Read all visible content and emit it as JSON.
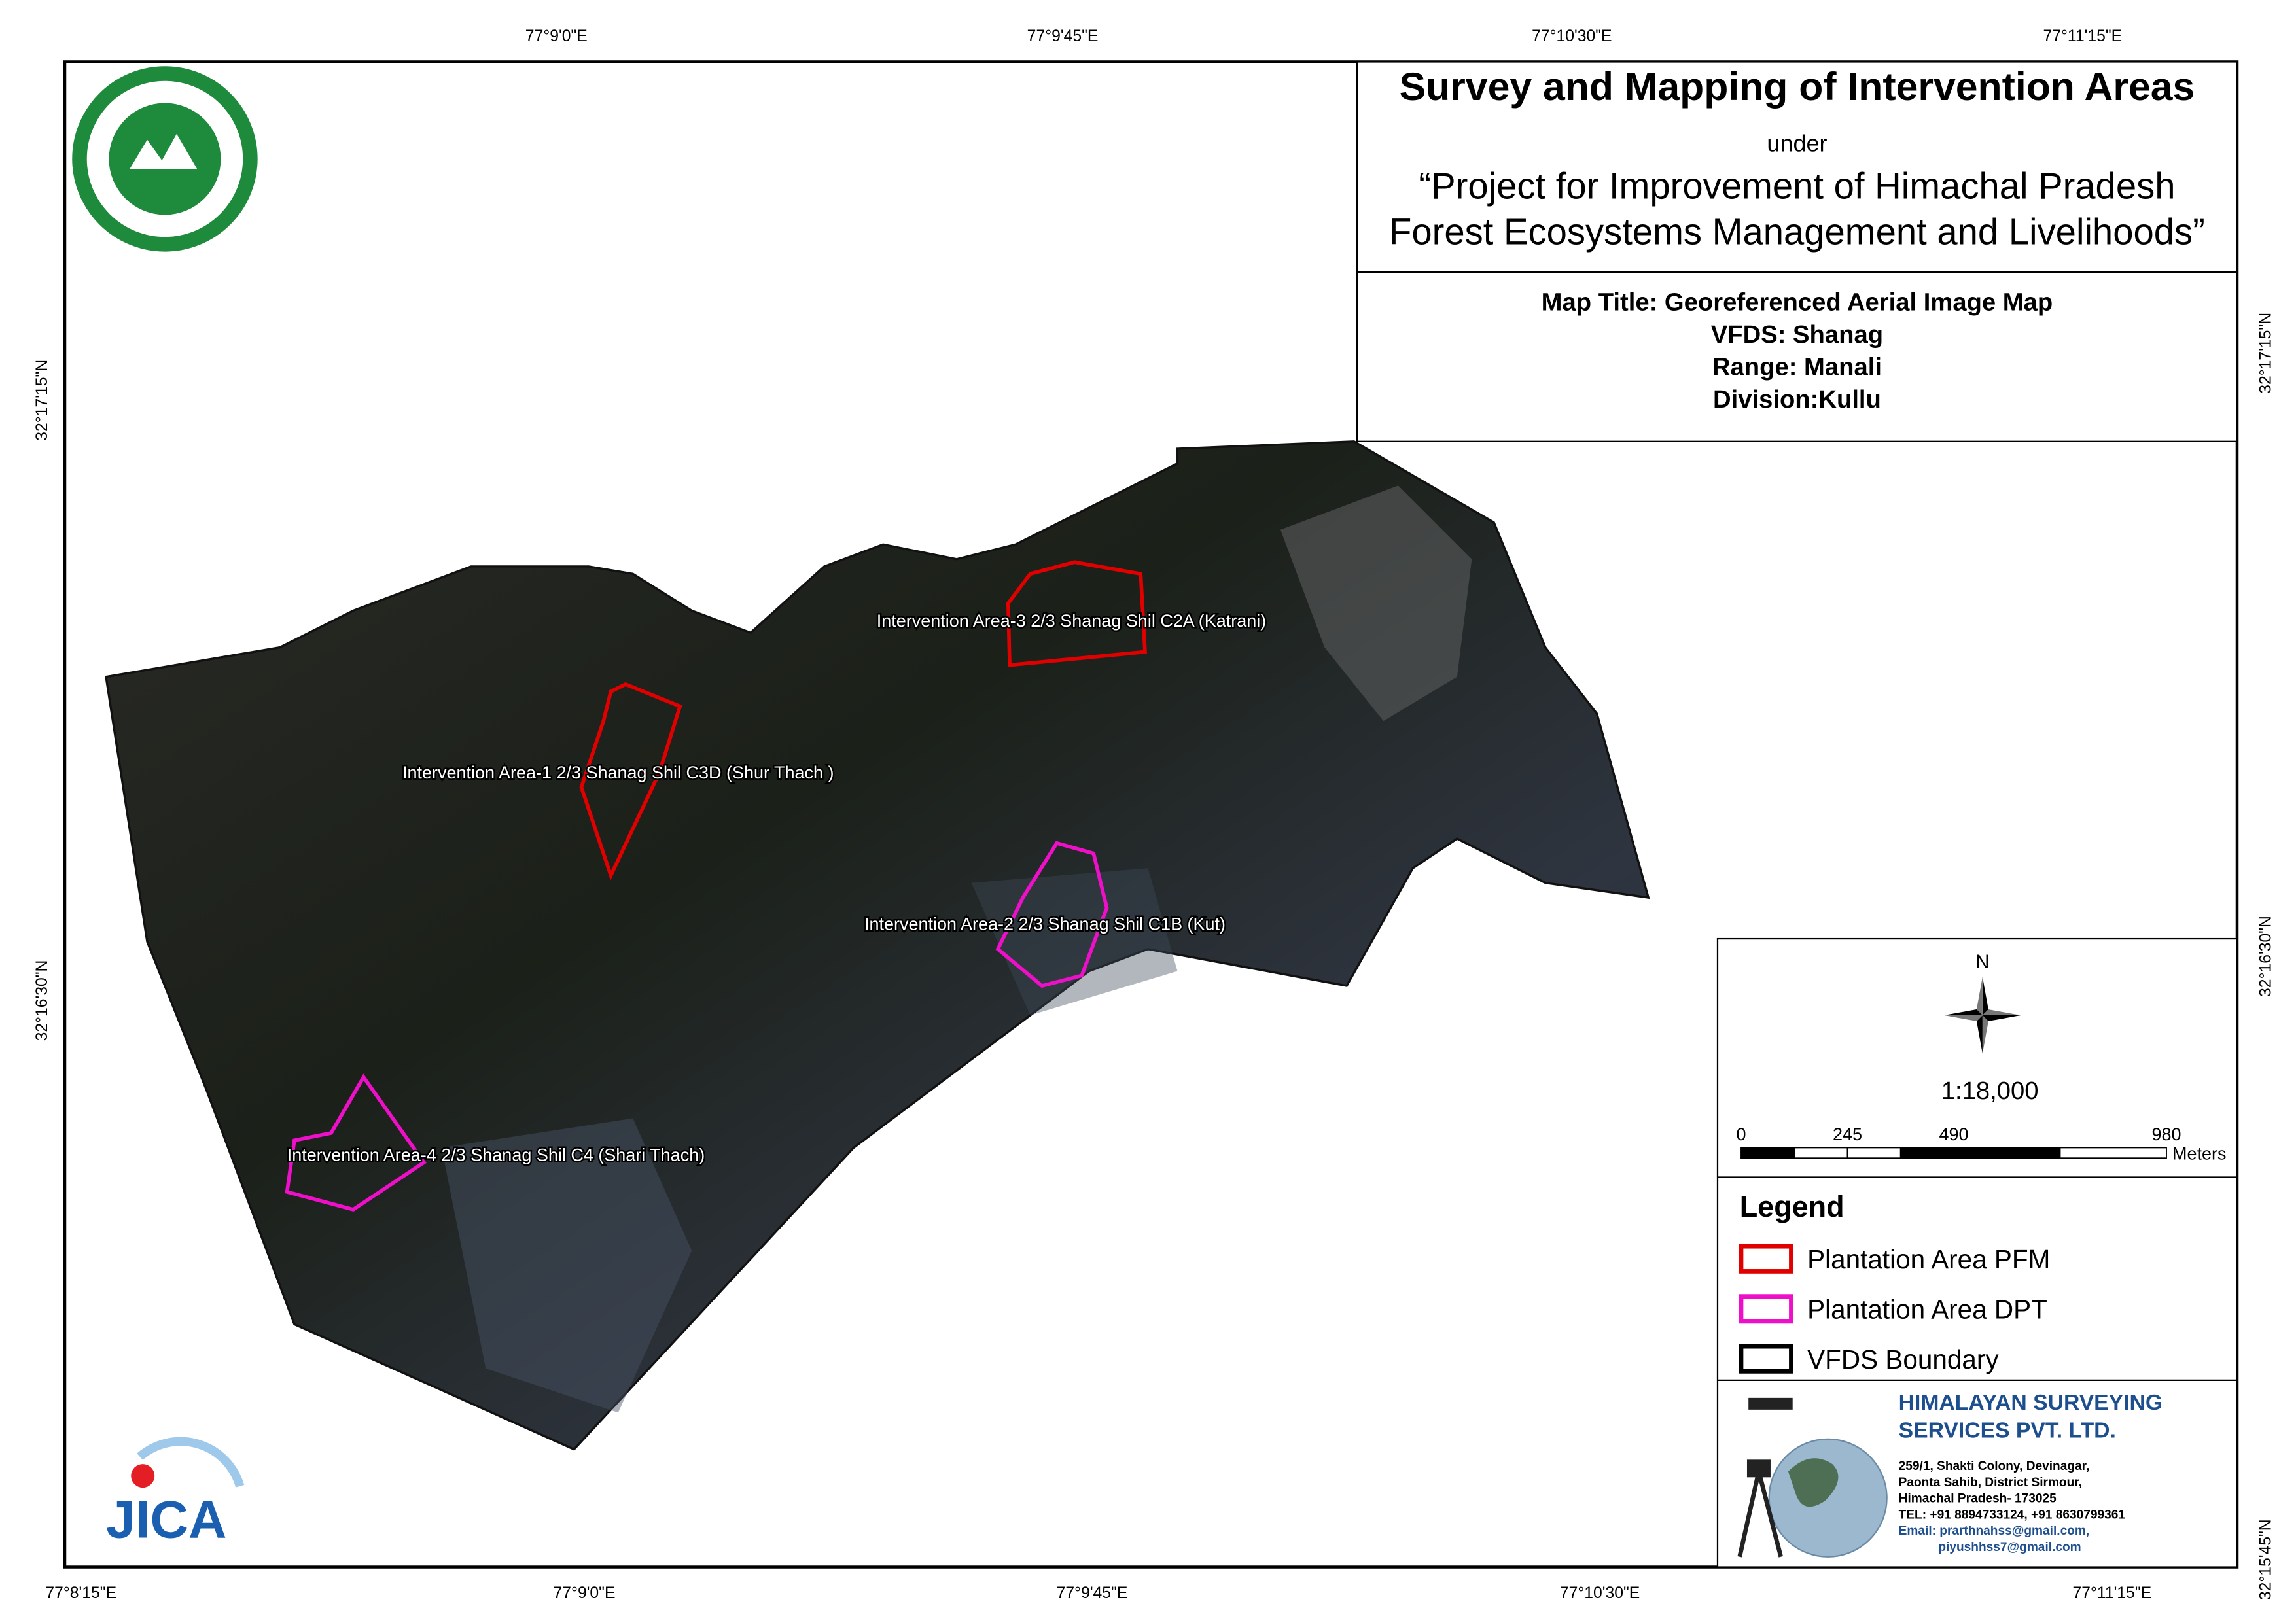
{
  "header": {
    "title": "Survey and Mapping of Intervention Areas",
    "under": "under",
    "project": [
      "“Project for Improvement of Himachal Pradesh",
      "Forest Ecosystems Management and Livelihoods”"
    ]
  },
  "map_info": [
    "Map Title: Georeferenced Aerial Image Map",
    "VFDS: Shanag",
    "Range: Manali",
    "Division:Kullu"
  ],
  "coordinates": {
    "top": [
      "77°9'0\"E",
      "77°9'45\"E",
      "77°10'30\"E",
      "77°11'15\"E"
    ],
    "bottom": [
      "77°8'15\"E",
      "77°9'0\"E",
      "77°9'45\"E",
      "77°10'30\"E",
      "77°11'15\"E"
    ],
    "left": [
      "32°17'15\"N",
      "32°16'30\"N"
    ],
    "right": [
      "32°17'15\"N",
      "32°16'30\"N",
      "32°15'45\"N"
    ]
  },
  "areas": [
    "Intervention Area-3 2/3 Shanag Shil C2A (Katrani)",
    "Intervention Area-1 2/3 Shanag Shil C3D (Shur Thach )",
    "Intervention Area-2 2/3  Shanag Shil  C1B (Kut)",
    "Intervention Area-4 2/3 Shanag Shil C4 (Shari Thach)"
  ],
  "north": "N",
  "scale": {
    "ratio": "1:18,000",
    "ticks": [
      0,
      245,
      490,
      980
    ],
    "unit": "Meters"
  },
  "legend": {
    "title": "Legend",
    "items": [
      "Plantation Area PFM",
      "Plantation Area DPT",
      "VFDS Boundary"
    ]
  },
  "company": {
    "name": [
      "HIMALAYAN SURVEYING",
      "SERVICES PVT. LTD."
    ],
    "address": [
      "259/1, Shakti Colony, Devinagar,",
      "Paonta Sahib, District Sirmour,",
      "Himachal Pradesh- 173025",
      "TEL: +91 8894733124, +91 8630799361",
      "Email: prarthnahss@gmail.com,",
      "piyushhss7@gmail.com"
    ]
  },
  "logo": "JICA"
}
